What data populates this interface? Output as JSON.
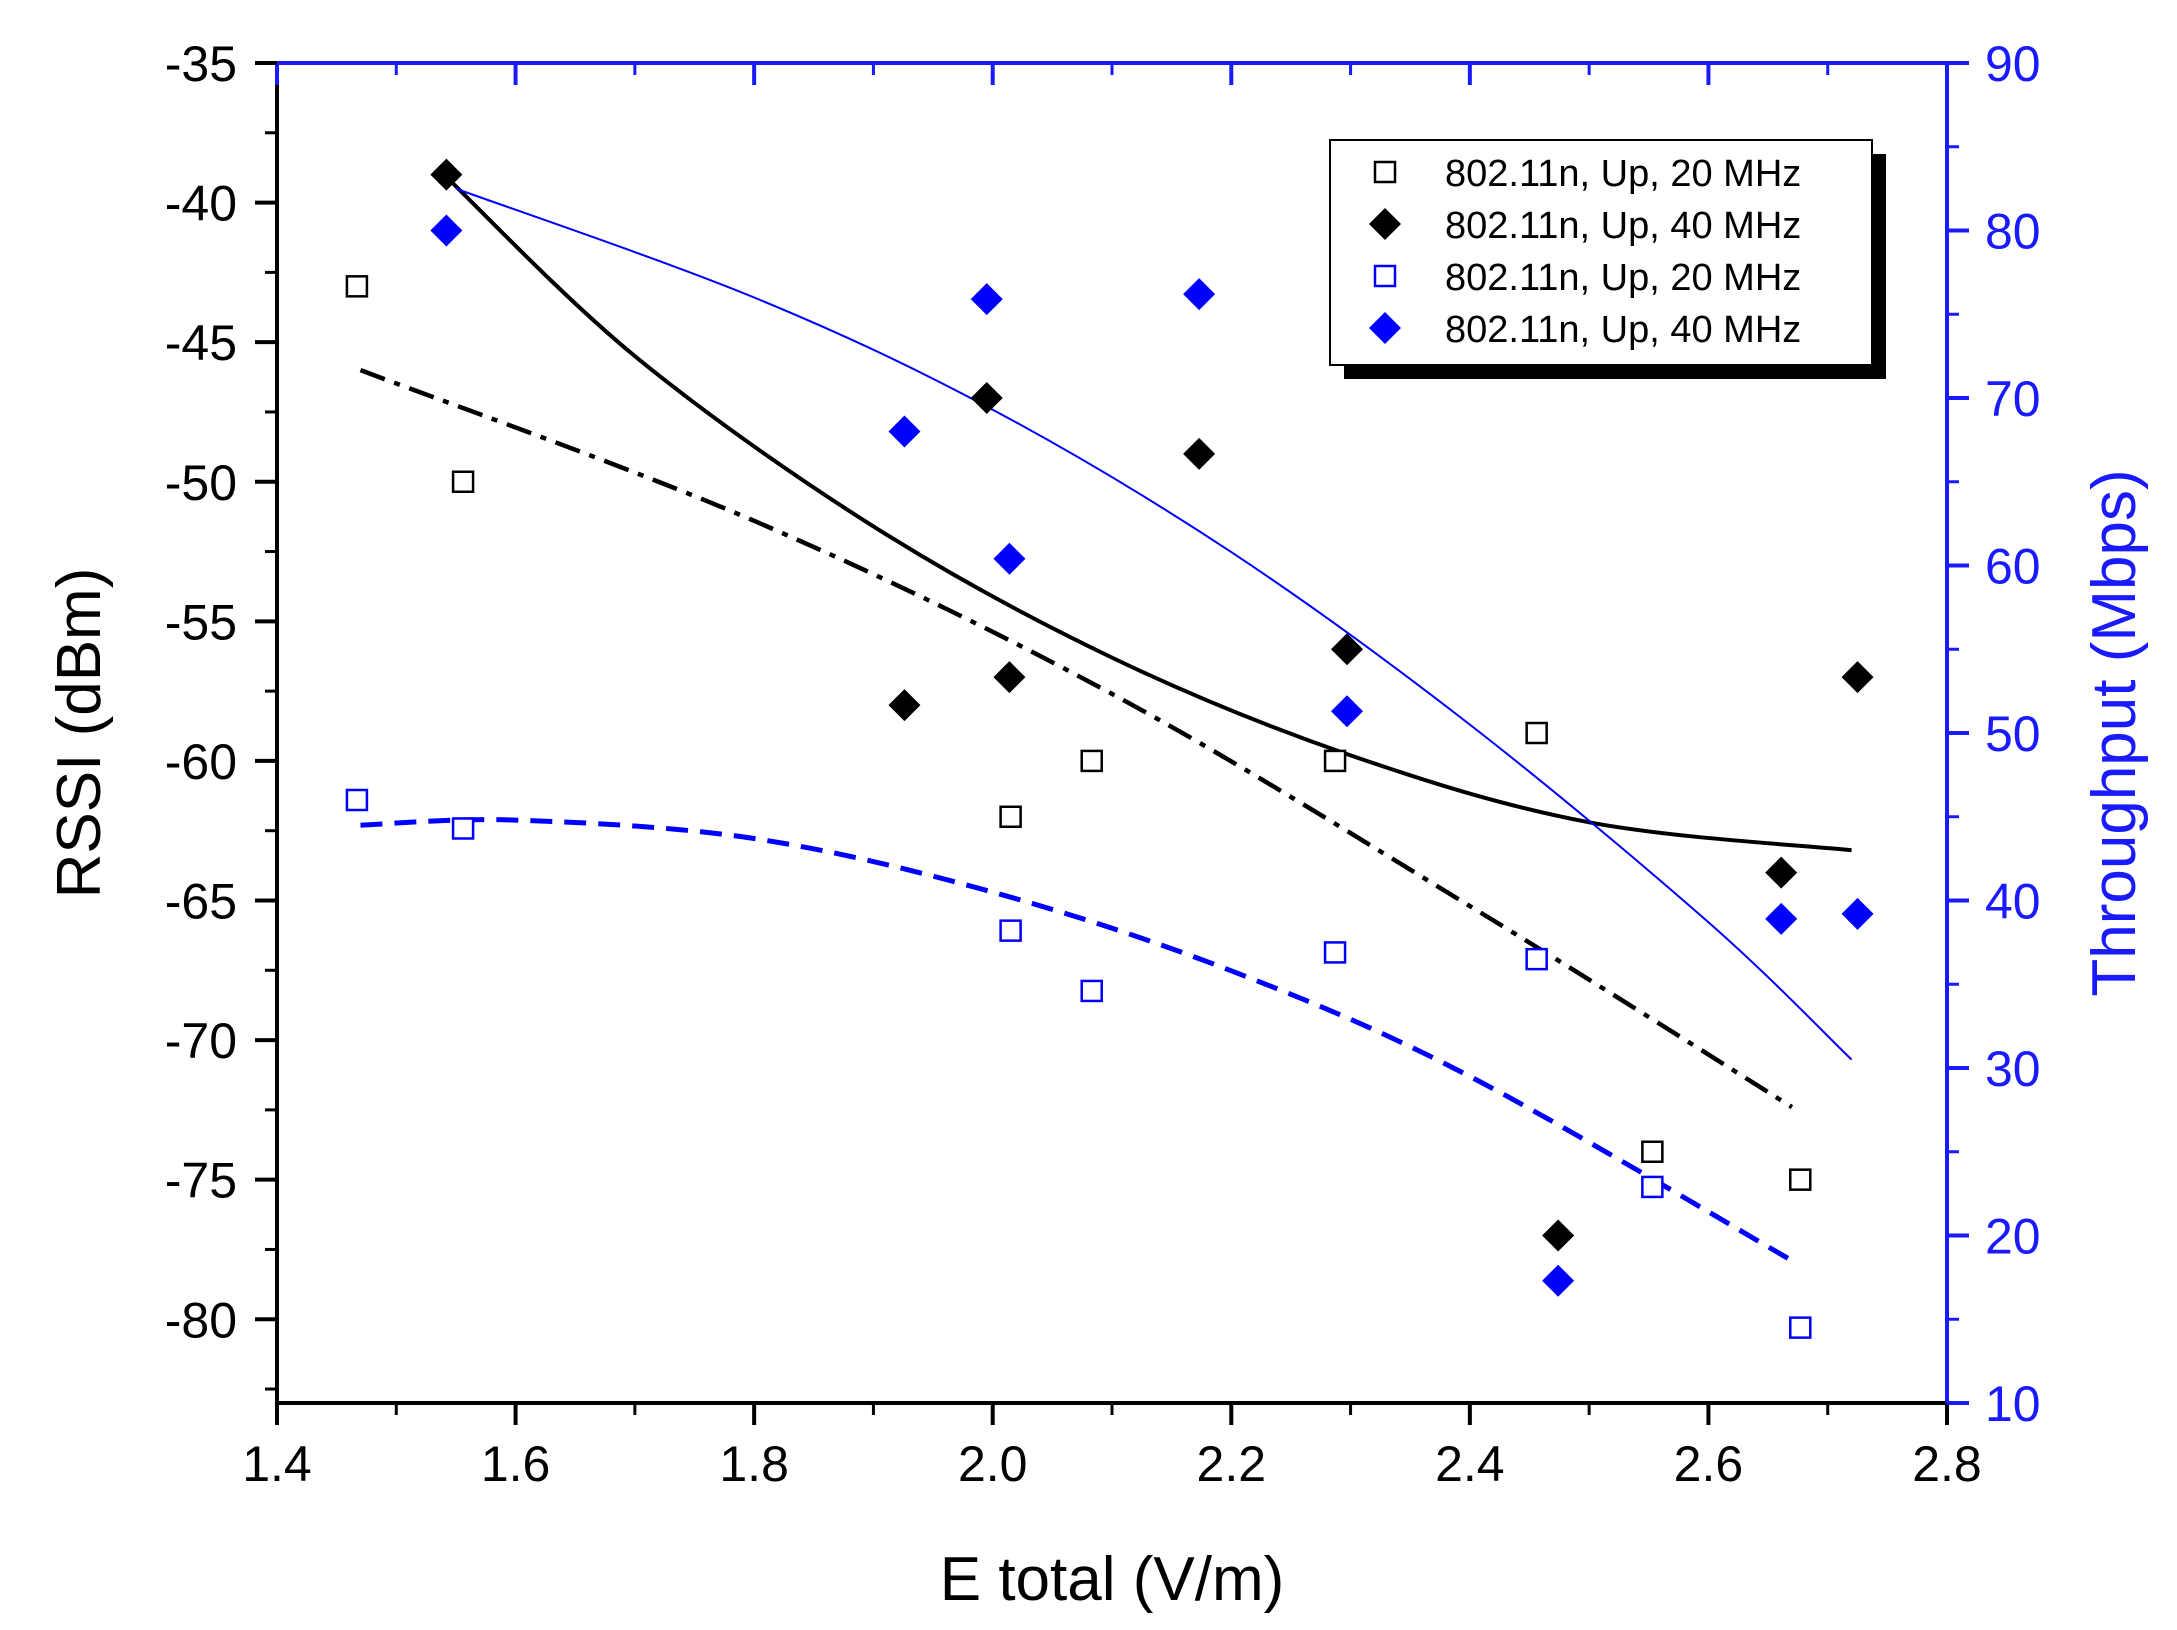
{
  "chart_data": {
    "type": "scatter",
    "xlabel": "E total (V/m)",
    "ylabel_left": "RSSI (dBm)",
    "ylabel_right": "Throughput (Mbps)",
    "xlim": [
      1.4,
      2.8
    ],
    "ylim_left": [
      -83,
      -35
    ],
    "ylim_right": [
      10,
      90
    ],
    "x_ticks": [
      "1.4",
      "1.6",
      "1.8",
      "2.0",
      "2.2",
      "2.4",
      "2.6",
      "2.8"
    ],
    "y_left_ticks": [
      "-35",
      "-40",
      "-45",
      "-50",
      "-55",
      "-60",
      "-65",
      "-70",
      "-75",
      "-80"
    ],
    "y_right_ticks": [
      "10",
      "20",
      "30",
      "40",
      "50",
      "60",
      "70",
      "80",
      "90"
    ],
    "colors": {
      "black": "#000000",
      "blue": "#0000ff",
      "right_axis": "#1a1aff"
    },
    "legend_position": "top-right",
    "series": [
      {
        "name": "802.11n, Up, 20 MHz",
        "axis": "left",
        "marker": "open-square",
        "color": "#000000",
        "x": [
          1.467,
          1.556,
          2.015,
          2.083,
          2.287,
          2.456,
          2.553,
          2.677
        ],
        "y": [
          -43,
          -50,
          -62,
          -60,
          -60,
          -59,
          -74,
          -75
        ],
        "fit": {
          "style": "dash-dot",
          "x": [
            1.47,
            1.8,
            2.1,
            2.4,
            2.67
          ],
          "y": [
            -46,
            -51.4,
            -57.6,
            -65.2,
            -72.4
          ]
        }
      },
      {
        "name": "802.11n, Up, 40 MHz",
        "axis": "left",
        "marker": "filled-diamond",
        "color": "#000000",
        "x": [
          1.542,
          1.926,
          1.995,
          2.014,
          2.173,
          2.297,
          2.474,
          2.661,
          2.725
        ],
        "y": [
          -39,
          -58,
          -47,
          -57,
          -49,
          -56,
          -77,
          -64,
          -57
        ],
        "fit": {
          "style": "solid",
          "x": [
            1.54,
            1.7,
            1.9,
            2.1,
            2.3,
            2.5,
            2.72
          ],
          "y": [
            -39,
            -45.5,
            -51.6,
            -56.3,
            -59.8,
            -62.2,
            -63.2
          ]
        }
      },
      {
        "name": "802.11n, Up, 20 MHz",
        "axis": "right",
        "marker": "open-square",
        "color": "#0000ff",
        "x": [
          1.467,
          1.556,
          2.015,
          2.083,
          2.287,
          2.456,
          2.553,
          2.677
        ],
        "y": [
          46,
          44.3,
          38.2,
          34.6,
          36.9,
          36.5,
          22.9,
          14.5
        ],
        "fit": {
          "style": "dashed",
          "x": [
            1.47,
            1.6,
            1.8,
            2.0,
            2.2,
            2.4,
            2.67
          ],
          "y": [
            44.5,
            44.8,
            43.7,
            40.5,
            35.8,
            29.5,
            18.5
          ]
        }
      },
      {
        "name": "802.11n, Up, 40 MHz",
        "axis": "right",
        "marker": "filled-diamond",
        "color": "#0000ff",
        "x": [
          1.542,
          1.926,
          1.995,
          2.014,
          2.173,
          2.297,
          2.474,
          2.661,
          2.725
        ],
        "y": [
          80,
          68,
          75.9,
          60.4,
          76.2,
          51.3,
          17.3,
          38.9,
          39.2
        ],
        "fit": {
          "style": "thin",
          "x": [
            1.55,
            1.8,
            2.0,
            2.2,
            2.4,
            2.6,
            2.72
          ],
          "y": [
            82.5,
            76,
            69.3,
            60.8,
            50.5,
            38.7,
            30.5
          ]
        }
      }
    ]
  }
}
